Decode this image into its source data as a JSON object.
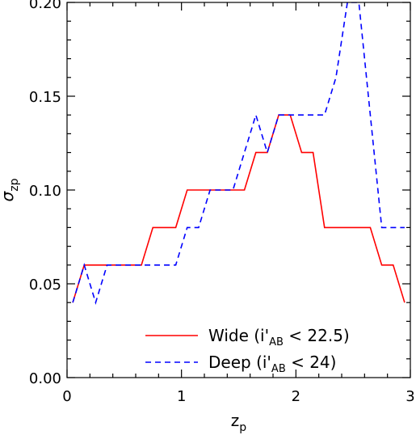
{
  "chart_data": {
    "type": "line",
    "xlabel": "z",
    "xlabel_sub": "p",
    "ylabel": "σ",
    "ylabel_sub": "zp",
    "xlim": [
      0,
      3
    ],
    "ylim": [
      0,
      0.2
    ],
    "xticks": [
      0,
      1,
      2,
      3
    ],
    "xtick_labels": [
      "0",
      "1",
      "2",
      "3"
    ],
    "yticks": [
      0.0,
      0.05,
      0.1,
      0.15,
      0.2
    ],
    "ytick_labels": [
      "0.00",
      "0.05",
      "0.10",
      "0.15",
      "0.20"
    ],
    "grid": false,
    "legend_position": "bottom-right",
    "series": [
      {
        "name": "Wide (i'AB < 22.5)",
        "legend": {
          "pre": "Wide (i'",
          "sub": "AB",
          "post": " < 22.5)"
        },
        "color": "#ff0000",
        "dash": "solid",
        "x": [
          0.05,
          0.15,
          0.25,
          0.35,
          0.45,
          0.55,
          0.65,
          0.75,
          0.85,
          0.95,
          1.05,
          1.15,
          1.25,
          1.35,
          1.45,
          1.55,
          1.65,
          1.75,
          1.85,
          1.95,
          2.05,
          2.15,
          2.25,
          2.35,
          2.45,
          2.55,
          2.65,
          2.75,
          2.85,
          2.95
        ],
        "y": [
          0.04,
          0.06,
          0.06,
          0.06,
          0.06,
          0.06,
          0.06,
          0.08,
          0.08,
          0.08,
          0.1,
          0.1,
          0.1,
          0.1,
          0.1,
          0.1,
          0.12,
          0.12,
          0.14,
          0.14,
          0.12,
          0.12,
          0.08,
          0.08,
          0.08,
          0.08,
          0.08,
          0.06,
          0.06,
          0.04
        ]
      },
      {
        "name": "Deep (i'AB < 24)",
        "legend": {
          "pre": "Deep (i'",
          "sub": "AB",
          "post": " < 24)"
        },
        "color": "#0000ff",
        "dash": "dashed",
        "x": [
          0.05,
          0.15,
          0.25,
          0.35,
          0.45,
          0.55,
          0.65,
          0.75,
          0.85,
          0.95,
          1.05,
          1.15,
          1.25,
          1.35,
          1.45,
          1.55,
          1.65,
          1.75,
          1.85,
          1.95,
          2.05,
          2.15,
          2.25,
          2.35,
          2.45,
          2.55,
          2.65,
          2.75,
          2.85,
          2.95
        ],
        "y": [
          0.04,
          0.06,
          0.04,
          0.06,
          0.06,
          0.06,
          0.06,
          0.06,
          0.06,
          0.06,
          0.08,
          0.08,
          0.1,
          0.1,
          0.1,
          0.12,
          0.14,
          0.12,
          0.14,
          0.14,
          0.14,
          0.14,
          0.14,
          0.16,
          0.2,
          0.2,
          0.14,
          0.08,
          0.08,
          0.08
        ]
      }
    ]
  }
}
